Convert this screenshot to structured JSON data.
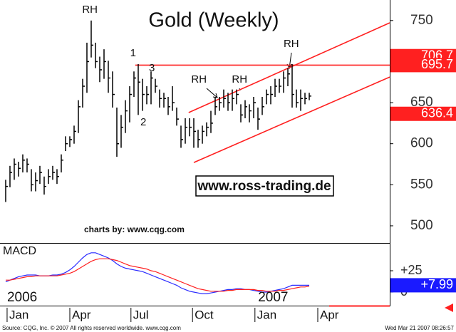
{
  "chart_data": [
    {
      "type": "ohlc",
      "title": "Gold (Weekly)",
      "x": [
        0,
        1,
        2,
        3,
        4,
        5,
        6,
        7,
        8,
        9,
        10,
        11,
        12,
        13,
        14,
        15,
        16,
        17,
        18,
        19,
        20,
        21,
        22,
        23,
        24,
        25,
        26,
        27,
        28,
        29,
        30,
        31,
        32,
        33,
        34,
        35,
        36,
        37,
        38,
        39,
        40,
        41,
        42,
        43,
        44,
        45,
        46,
        47,
        48,
        49,
        50,
        51,
        52,
        53,
        54,
        55,
        56,
        57,
        58,
        59,
        60,
        61,
        62,
        63,
        64,
        65,
        66,
        67,
        68,
        69,
        70,
        71
      ],
      "high": [
        556,
        573,
        582,
        578,
        587,
        582,
        569,
        565,
        573,
        560,
        569,
        573,
        569,
        587,
        609,
        609,
        622,
        653,
        679,
        723,
        750,
        723,
        706,
        715,
        701,
        688,
        644,
        635,
        653,
        670,
        688,
        697,
        679,
        670,
        688,
        679,
        666,
        662,
        657,
        670,
        644,
        622,
        631,
        631,
        631,
        617,
        622,
        626,
        640,
        657,
        657,
        666,
        662,
        666,
        666,
        648,
        653,
        648,
        657,
        644,
        657,
        666,
        670,
        679,
        679,
        688,
        692,
        697,
        666,
        666,
        662,
        662
      ],
      "low": [
        529,
        547,
        556,
        560,
        565,
        565,
        542,
        542,
        551,
        538,
        551,
        556,
        551,
        565,
        591,
        596,
        600,
        613,
        644,
        662,
        705,
        692,
        675,
        679,
        662,
        644,
        584,
        595,
        613,
        626,
        657,
        635,
        640,
        648,
        648,
        662,
        644,
        644,
        635,
        640,
        622,
        595,
        600,
        609,
        595,
        595,
        600,
        609,
        613,
        635,
        640,
        644,
        640,
        640,
        648,
        626,
        631,
        626,
        631,
        617,
        635,
        648,
        648,
        657,
        662,
        662,
        670,
        644,
        644,
        640,
        648,
        653
      ],
      "close": [
        548,
        565,
        575,
        570,
        580,
        575,
        550,
        555,
        565,
        548,
        560,
        565,
        560,
        580,
        600,
        605,
        615,
        645,
        670,
        700,
        720,
        700,
        690,
        700,
        680,
        660,
        600,
        620,
        640,
        660,
        680,
        675,
        660,
        660,
        680,
        670,
        655,
        655,
        645,
        650,
        630,
        605,
        620,
        620,
        615,
        605,
        615,
        620,
        625,
        645,
        650,
        655,
        650,
        655,
        660,
        635,
        645,
        640,
        650,
        630,
        645,
        660,
        660,
        670,
        670,
        680,
        685,
        660,
        650,
        655,
        655,
        658
      ],
      "color": "#000000",
      "xlim": [
        -1.33,
        89.83
      ],
      "ylim": [
        480,
        775
      ],
      "yticks": [
        500,
        550,
        600,
        650,
        750
      ],
      "price_labels": [
        {
          "value": 706.7,
          "color": "#ff2020"
        },
        {
          "value": 695.7,
          "color": "#ff2020"
        },
        {
          "value": 636.4,
          "color": "#ff2020"
        }
      ],
      "trendlines": [
        {
          "color": "#ff2020",
          "x": [
            30.3,
            89.83
          ],
          "y": [
            695.7,
            695.7
          ]
        },
        {
          "color": "#ff2020",
          "x": [
            44,
            89.83
          ],
          "y": [
            577.1,
            681.2
          ]
        },
        {
          "color": "#ff2020",
          "x": [
            42.8,
            89.83
          ],
          "y": [
            637.9,
            747.2
          ]
        }
      ],
      "annotations": [
        {
          "text": "RH",
          "x": 19.7,
          "y": 762.8
        },
        {
          "text": "1",
          "x": 29.8,
          "y": 709.9
        },
        {
          "text": "3",
          "x": 34.2,
          "y": 691.6
        },
        {
          "text": "2",
          "x": 32.2,
          "y": 625.7
        },
        {
          "text": "RH",
          "x": 45.2,
          "y": 677.8
        },
        {
          "text": "RH",
          "x": 54.7,
          "y": 677.8
        },
        {
          "text": "RH",
          "x": 66.8,
          "y": 721.2
        }
      ],
      "watermark": "www.ross-trading.de",
      "credit": "charts by: www.cqg.com"
    },
    {
      "type": "line",
      "title": "MACD",
      "series": [
        {
          "color": "#2a2aff",
          "values": [
            12,
            14,
            16,
            18,
            19,
            20,
            20,
            20,
            19,
            19,
            19,
            20,
            20,
            21,
            23,
            26,
            30,
            35,
            40,
            44,
            46,
            46,
            44,
            42,
            40,
            37,
            33,
            30,
            28,
            27,
            26,
            25,
            24,
            22,
            20,
            18,
            16,
            14,
            12,
            10,
            8,
            5,
            3,
            1,
            0,
            -1,
            -2,
            -2,
            -1,
            0,
            1,
            2,
            3,
            3,
            4,
            4,
            3,
            3,
            2,
            1,
            0,
            0,
            1,
            2,
            3,
            4,
            6,
            8,
            8,
            8,
            8,
            7.99
          ]
        },
        {
          "color": "#ff2020",
          "values": [
            14,
            14,
            15,
            16,
            17,
            18,
            18,
            19,
            19,
            19,
            19,
            19,
            19,
            20,
            21,
            22,
            24,
            27,
            30,
            33,
            36,
            38,
            39,
            39,
            39,
            38,
            37,
            35,
            33,
            31,
            30,
            29,
            28,
            27,
            25,
            24,
            22,
            20,
            18,
            16,
            14,
            12,
            10,
            8,
            6,
            4,
            3,
            2,
            1,
            1,
            1,
            1,
            2,
            2,
            3,
            3,
            3,
            3,
            3,
            2,
            2,
            1,
            1,
            1,
            2,
            2,
            3,
            4,
            5,
            6,
            6,
            7
          ]
        }
      ],
      "ylim": [
        -15,
        56.7
      ],
      "yticks": [
        0,
        {
          "value": 25,
          "label": "+25"
        }
      ],
      "last_label": {
        "value": 7.99,
        "label": "+7.99",
        "color": "#1a1aff"
      },
      "xticks": [
        {
          "value": 0.33,
          "label": "Jan"
        },
        {
          "value": 15,
          "label": "Apr"
        },
        {
          "value": 29.3,
          "label": "Jul"
        },
        {
          "value": 43.7,
          "label": "Oct"
        },
        {
          "value": 58.3,
          "label": "Jan"
        },
        {
          "value": 73,
          "label": "Apr"
        }
      ],
      "year_labels": [
        {
          "text": "2006",
          "x": 0
        },
        {
          "text": "2007",
          "x": 58.7
        }
      ]
    }
  ],
  "footer": {
    "source": "Source: CQG, Inc. © 2007 All rights reserved worldwide. www.cqg.com",
    "timestamp": "Wed Mar 21 2007 08:26:57"
  }
}
